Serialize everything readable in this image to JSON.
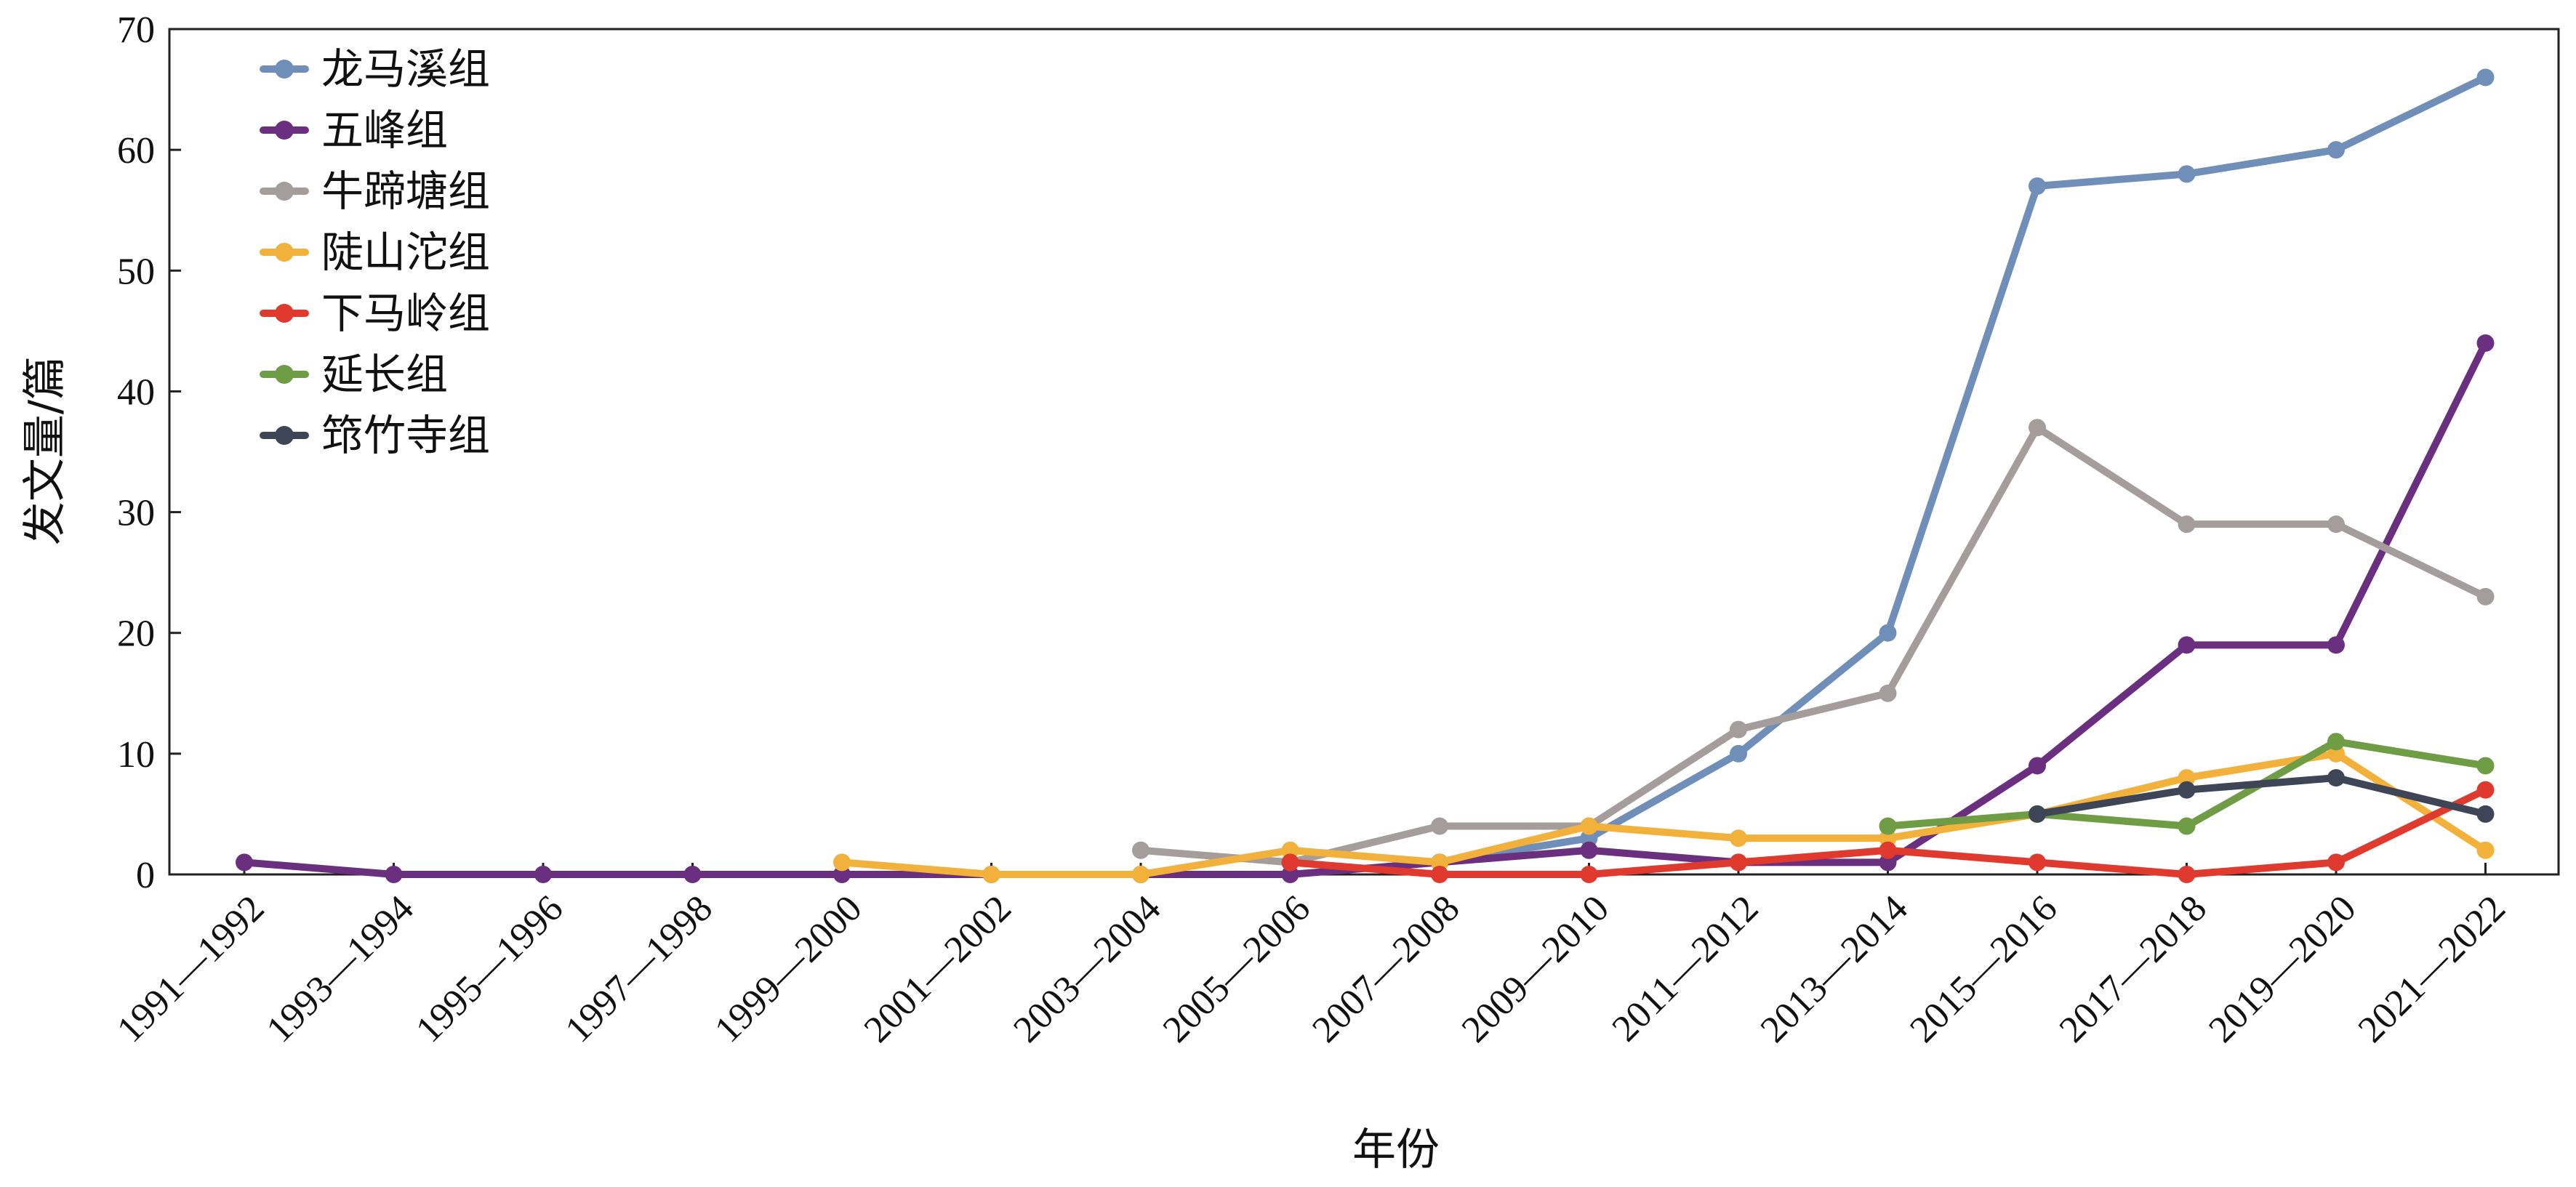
{
  "chart_data": {
    "type": "line",
    "categories": [
      "1991—1992",
      "1993—1994",
      "1995—1996",
      "1997—1998",
      "1999—2000",
      "2001—2002",
      "2003—2004",
      "2005—2006",
      "2007—2008",
      "2009—2010",
      "2011—2012",
      "2013—2014",
      "2015—2016",
      "2017—2018",
      "2019—2020",
      "2021—2022"
    ],
    "xlabel": "年份",
    "ylabel": "发文量/篇",
    "ylim": [
      0,
      70
    ],
    "yticks": [
      0,
      10,
      20,
      30,
      40,
      50,
      60,
      70
    ],
    "grid": false,
    "legend_position": "top-left",
    "series": [
      {
        "name": "龙马溪组",
        "color": "#6f8fb9",
        "values": [
          null,
          null,
          null,
          null,
          null,
          null,
          null,
          null,
          1,
          3,
          10,
          20,
          57,
          58,
          60,
          66
        ]
      },
      {
        "name": "五峰组",
        "color": "#6b2f7f",
        "values": [
          1,
          0,
          0,
          0,
          0,
          0,
          0,
          0,
          1,
          2,
          1,
          1,
          9,
          19,
          19,
          44
        ]
      },
      {
        "name": "牛蹄塘组",
        "color": "#a59d9b",
        "values": [
          null,
          null,
          null,
          null,
          null,
          null,
          2,
          1,
          4,
          4,
          12,
          15,
          37,
          29,
          29,
          23
        ]
      },
      {
        "name": "陡山沱组",
        "color": "#f2b13b",
        "values": [
          null,
          null,
          null,
          null,
          1,
          0,
          0,
          2,
          1,
          4,
          3,
          3,
          5,
          8,
          10,
          2
        ]
      },
      {
        "name": "下马岭组",
        "color": "#e03a2f",
        "values": [
          null,
          null,
          null,
          null,
          null,
          null,
          null,
          1,
          0,
          0,
          1,
          2,
          1,
          0,
          1,
          7
        ]
      },
      {
        "name": "延长组",
        "color": "#6f9d45",
        "values": [
          null,
          null,
          null,
          null,
          null,
          null,
          null,
          null,
          null,
          null,
          null,
          4,
          5,
          4,
          11,
          9
        ]
      },
      {
        "name": "筇竹寺组",
        "color": "#3e4556",
        "values": [
          null,
          null,
          null,
          null,
          null,
          null,
          null,
          null,
          null,
          null,
          null,
          null,
          5,
          7,
          8,
          5
        ]
      }
    ]
  }
}
